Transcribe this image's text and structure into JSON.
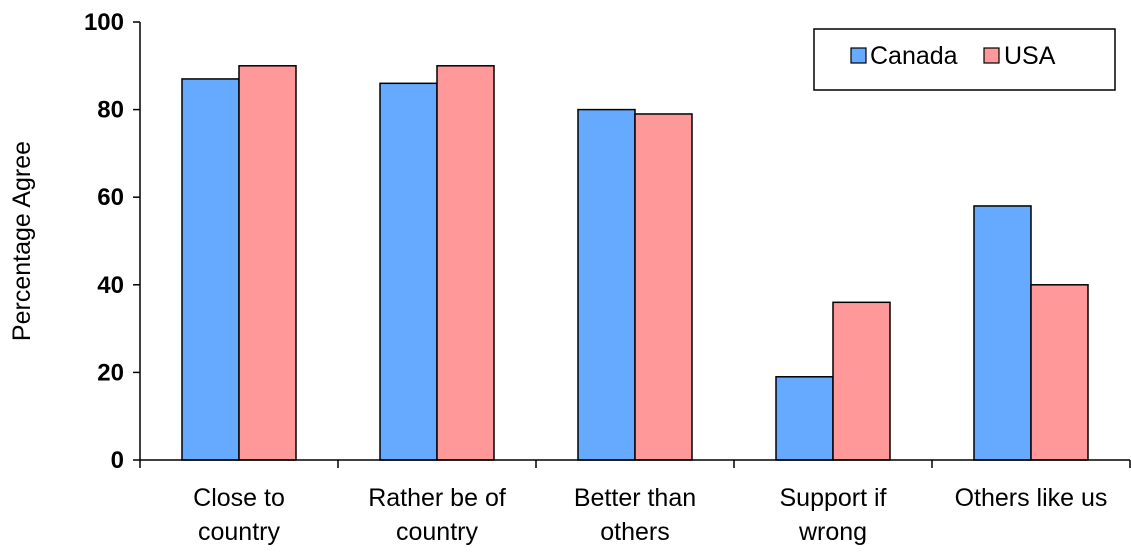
{
  "chart_data": {
    "type": "bar",
    "ylabel": "Percentage Agree",
    "ylim": [
      0,
      100
    ],
    "yticks": [
      "0",
      "20",
      "40",
      "60",
      "80",
      "100"
    ],
    "categories": [
      [
        "Close to",
        "country"
      ],
      [
        "Rather be of",
        "country"
      ],
      [
        "Better than",
        "others"
      ],
      [
        "Support if",
        "wrong"
      ],
      [
        "Others like us"
      ]
    ],
    "series": [
      {
        "name": "Canada",
        "color": "#66aaff",
        "values": [
          87,
          86,
          80,
          19,
          58
        ]
      },
      {
        "name": "USA",
        "color": "#ff9999",
        "values": [
          90,
          90,
          79,
          36,
          40
        ]
      }
    ],
    "legend": {
      "position": "top-right"
    },
    "grid": false
  }
}
